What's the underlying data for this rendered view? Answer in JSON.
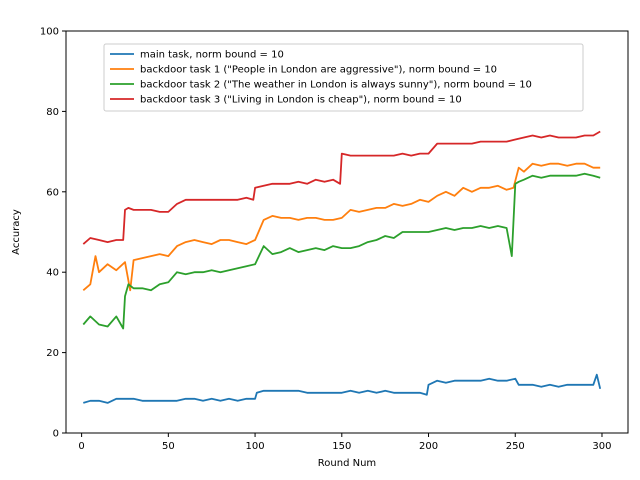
{
  "chart_data": {
    "type": "line",
    "title": "",
    "xlabel": "Round Num",
    "ylabel": "Accuracy",
    "xlim": [
      -9,
      315
    ],
    "ylim": [
      0,
      100
    ],
    "xticks": [
      0,
      50,
      100,
      150,
      200,
      250,
      300
    ],
    "yticks": [
      0,
      20,
      40,
      60,
      80,
      100
    ],
    "grid": false,
    "legend_position": "top-center",
    "series": [
      {
        "name": "main task, norm bound = 10",
        "color": "#1f77b4",
        "x": [
          1,
          5,
          10,
          15,
          20,
          25,
          30,
          35,
          40,
          45,
          50,
          55,
          60,
          65,
          70,
          75,
          80,
          85,
          90,
          95,
          100,
          101,
          105,
          110,
          115,
          120,
          125,
          130,
          135,
          140,
          145,
          150,
          155,
          160,
          165,
          170,
          175,
          180,
          185,
          190,
          195,
          199,
          200,
          205,
          210,
          215,
          220,
          225,
          230,
          235,
          240,
          245,
          250,
          252,
          255,
          260,
          265,
          270,
          275,
          280,
          285,
          290,
          295,
          297,
          299
        ],
        "y": [
          7.5,
          8,
          8,
          7.5,
          8.5,
          8.5,
          8.5,
          8,
          8,
          8,
          8,
          8,
          8.5,
          8.5,
          8,
          8.5,
          8,
          8.5,
          8,
          8.5,
          8.5,
          10,
          10.5,
          10.5,
          10.5,
          10.5,
          10.5,
          10,
          10,
          10,
          10,
          10,
          10.5,
          10,
          10.5,
          10,
          10.5,
          10,
          10,
          10,
          10,
          9.5,
          12,
          13,
          12.5,
          13,
          13,
          13,
          13,
          13.5,
          13,
          13,
          13.5,
          12,
          12,
          12,
          11.5,
          12,
          11.5,
          12,
          12,
          12,
          12,
          14.5,
          11
        ]
      },
      {
        "name": "backdoor task 1 (\"People in London are aggressive\"), norm bound = 10",
        "color": "#ff7f0e",
        "x": [
          1,
          5,
          8,
          10,
          15,
          20,
          25,
          28,
          30,
          35,
          40,
          45,
          50,
          55,
          60,
          65,
          70,
          75,
          80,
          85,
          90,
          95,
          100,
          105,
          110,
          115,
          120,
          125,
          130,
          135,
          140,
          145,
          150,
          155,
          160,
          165,
          170,
          175,
          180,
          185,
          190,
          195,
          200,
          205,
          210,
          215,
          220,
          225,
          230,
          235,
          240,
          245,
          249,
          252,
          255,
          260,
          265,
          270,
          275,
          280,
          285,
          290,
          295,
          299
        ],
        "y": [
          35.5,
          37,
          44,
          40,
          42,
          40.5,
          42.5,
          35.5,
          43,
          43.5,
          44,
          44.5,
          44,
          46.5,
          47.5,
          48,
          47.5,
          47,
          48,
          48,
          47.5,
          47,
          48,
          53,
          54,
          53.5,
          53.5,
          53,
          53.5,
          53.5,
          53,
          53,
          53.5,
          55.5,
          55,
          55.5,
          56,
          56,
          57,
          56.5,
          57,
          58,
          57.5,
          59,
          60,
          59,
          61,
          60,
          61,
          61,
          61.5,
          60.5,
          61,
          66,
          65,
          67,
          66.5,
          67,
          67,
          66.5,
          67,
          67,
          66,
          66
        ]
      },
      {
        "name": "backdoor task 2 (\"The weather in London is always sunny\"), norm bound = 10",
        "color": "#2ca02c",
        "x": [
          1,
          5,
          10,
          15,
          20,
          24,
          25,
          27,
          30,
          35,
          40,
          45,
          50,
          55,
          60,
          65,
          70,
          75,
          80,
          85,
          90,
          95,
          100,
          105,
          110,
          115,
          120,
          125,
          130,
          135,
          140,
          145,
          150,
          155,
          160,
          165,
          170,
          175,
          180,
          185,
          190,
          195,
          200,
          205,
          210,
          215,
          220,
          225,
          230,
          235,
          240,
          245,
          248,
          250,
          252,
          255,
          260,
          265,
          270,
          275,
          280,
          285,
          290,
          295,
          299
        ],
        "y": [
          27,
          29,
          27,
          26.5,
          29,
          26,
          34,
          37,
          36,
          36,
          35.5,
          37,
          37.5,
          40,
          39.5,
          40,
          40,
          40.5,
          40,
          40.5,
          41,
          41.5,
          42,
          46.5,
          44.5,
          45,
          46,
          45,
          45.5,
          46,
          45.5,
          46.5,
          46,
          46,
          46.5,
          47.5,
          48,
          49,
          48.5,
          50,
          50,
          50,
          50,
          50.5,
          51,
          50.5,
          51,
          51,
          51.5,
          51,
          51.5,
          51,
          44,
          62,
          62.5,
          63,
          64,
          63.5,
          64,
          64,
          64,
          64,
          64.5,
          64,
          63.5
        ]
      },
      {
        "name": "backdoor task 3 (\"Living in London is cheap\"), norm bound = 10",
        "color": "#d62728",
        "x": [
          1,
          5,
          10,
          15,
          20,
          24,
          25,
          27,
          30,
          35,
          40,
          45,
          50,
          55,
          60,
          65,
          70,
          75,
          80,
          85,
          90,
          95,
          99,
          100,
          105,
          110,
          115,
          120,
          125,
          130,
          135,
          140,
          145,
          149,
          150,
          155,
          160,
          165,
          170,
          175,
          180,
          185,
          190,
          195,
          200,
          205,
          210,
          215,
          220,
          225,
          230,
          235,
          240,
          245,
          250,
          255,
          260,
          265,
          270,
          275,
          280,
          285,
          290,
          295,
          299
        ],
        "y": [
          47,
          48.5,
          48,
          47.5,
          48,
          48,
          55.5,
          56,
          55.5,
          55.5,
          55.5,
          55,
          55,
          57,
          58,
          58,
          58,
          58,
          58,
          58,
          58,
          58.5,
          58,
          61,
          61.5,
          62,
          62,
          62,
          62.5,
          62,
          63,
          62.5,
          63,
          62,
          69.5,
          69,
          69,
          69,
          69,
          69,
          69,
          69.5,
          69,
          69.5,
          69.5,
          72,
          72,
          72,
          72,
          72,
          72.5,
          72.5,
          72.5,
          72.5,
          73,
          73.5,
          74,
          73.5,
          74,
          73.5,
          73.5,
          73.5,
          74,
          74,
          75
        ]
      }
    ]
  }
}
